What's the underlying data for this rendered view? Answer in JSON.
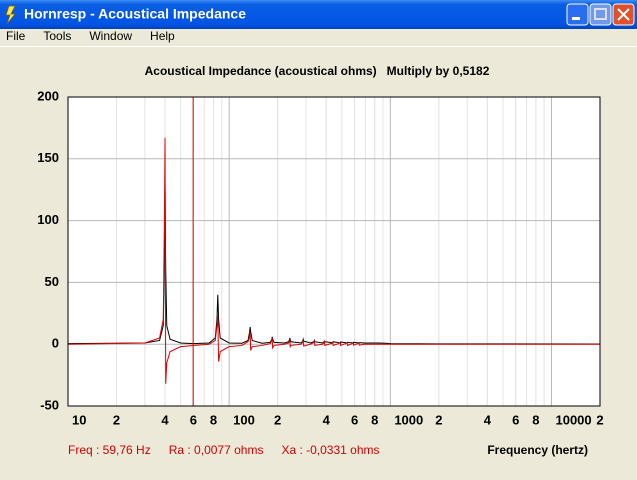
{
  "window": {
    "title": "Hornresp - Acoustical Impedance"
  },
  "menu": [
    "File",
    "Tools",
    "Window",
    "Help"
  ],
  "status": [
    "Freq : 59,76 Hz",
    "Ra : 0,0077 ohms",
    "Xa : -0,0331 ohms"
  ],
  "chart_data": {
    "type": "line",
    "title": "Acoustical Impedance (acoustical ohms)   Multiply by 0,5182",
    "x_label": "Frequency (hertz)",
    "log_x": true,
    "grid": true,
    "xlim": [
      10,
      20000
    ],
    "ylim": [
      -50,
      200
    ],
    "yticks": [
      -50,
      0,
      50,
      100,
      150,
      200
    ],
    "xticks": [
      10,
      {
        "value": 20,
        "label": "2"
      },
      {
        "value": 40,
        "label": "4"
      },
      {
        "value": 60,
        "label": "6"
      },
      {
        "value": 80,
        "label": "8"
      },
      100,
      {
        "value": 200,
        "label": "2"
      },
      {
        "value": 400,
        "label": "4"
      },
      {
        "value": 600,
        "label": "6"
      },
      {
        "value": 800,
        "label": "8"
      },
      1000,
      {
        "value": 2000,
        "label": "2"
      },
      {
        "value": 4000,
        "label": "4"
      },
      {
        "value": 6000,
        "label": "6"
      },
      {
        "value": 8000,
        "label": "8"
      },
      10000,
      {
        "value": 20000,
        "label": "2"
      }
    ],
    "cursor": {
      "x": 59.76,
      "color": "#e00000"
    },
    "x": [
      10,
      30,
      37,
      39,
      39.6,
      40,
      40.4,
      41,
      43,
      50,
      60,
      75,
      82,
      84,
      85,
      86,
      88,
      100,
      120,
      131,
      134,
      135,
      136,
      139,
      160,
      180,
      184,
      185,
      186,
      190,
      220,
      234,
      237,
      238,
      239,
      242,
      280,
      286,
      288,
      290,
      320,
      336,
      338,
      340,
      380,
      388,
      390,
      392,
      440,
      442,
      490,
      492,
      540,
      542,
      590,
      592,
      640,
      642,
      690,
      740,
      790,
      840,
      890,
      940,
      1000,
      2000,
      20000
    ],
    "series": [
      {
        "color": "#000000",
        "values": [
          0.5,
          1,
          3,
          15,
          60,
          128,
          60,
          15,
          4,
          1,
          0.5,
          1,
          5,
          20,
          40,
          20,
          5,
          1,
          0.8,
          3,
          10,
          14,
          10,
          3,
          0.8,
          1.5,
          4,
          6,
          4,
          1.5,
          1,
          2,
          4,
          5,
          4,
          2,
          1,
          2.5,
          4,
          2.5,
          1,
          2,
          3,
          2,
          1,
          2,
          2.5,
          2,
          1.2,
          2,
          1,
          1.8,
          1,
          1.5,
          1,
          1.5,
          1,
          1.3,
          1,
          1,
          1,
          1,
          0.9,
          0.8,
          0.5,
          0.3,
          0.2
        ]
      },
      {
        "color": "#e00000",
        "values": [
          0,
          1,
          5,
          20,
          96,
          167,
          -32,
          -15,
          -6,
          -2,
          -1,
          0,
          3,
          15,
          23,
          -14,
          -6,
          -2,
          -1,
          2,
          6,
          10,
          -5,
          -2,
          -1,
          0.5,
          3,
          5,
          -3,
          -1,
          0,
          1,
          3,
          4,
          -2,
          -1,
          0,
          2,
          3,
          -1.5,
          0,
          1.5,
          2,
          -1,
          0,
          1.5,
          2,
          -1,
          1,
          -1,
          1,
          -1,
          1,
          -1,
          0.8,
          -0.8,
          0.8,
          -0.8,
          0,
          0,
          0,
          0,
          0,
          0,
          0,
          0,
          0
        ]
      }
    ]
  }
}
